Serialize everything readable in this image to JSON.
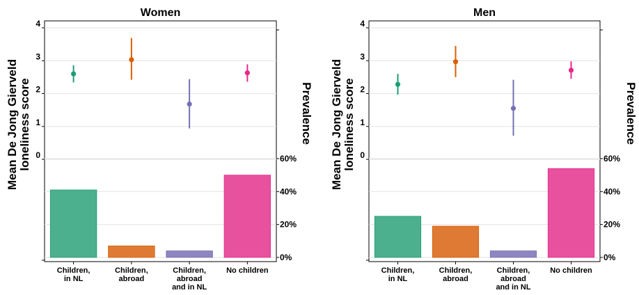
{
  "chart_data": [
    {
      "type": "bar",
      "title": "Women",
      "ylabel": "Mean De Jong Gierveld loneliness score",
      "y2label": "Prevalence",
      "categories": [
        "Children, in NL",
        "Children, abroad",
        "Children, abroad and in NL",
        "No children"
      ],
      "category_lines": [
        [
          "Children,",
          "in NL",
          ""
        ],
        [
          "Children,",
          "abroad",
          ""
        ],
        [
          "Children,",
          "abroad",
          "and in NL"
        ],
        [
          "No children"
        ]
      ],
      "series": [
        {
          "name": "Mean De Jong Gierveld loneliness score",
          "type": "errorbar",
          "values": [
            2.6,
            3.03,
            1.68,
            2.63
          ],
          "lower": [
            2.34,
            2.42,
            0.94,
            2.36
          ],
          "upper": [
            2.86,
            3.69,
            2.44,
            2.89
          ]
        },
        {
          "name": "Prevalence",
          "type": "bar",
          "values": [
            41,
            7,
            4,
            50
          ]
        }
      ],
      "ylim_score": [
        0,
        4
      ],
      "score_ticks": [
        "0",
        "1",
        "2",
        "3",
        "4"
      ],
      "ylim_prevalence": [
        0,
        60
      ],
      "prevalence_ticks": [
        "0%",
        "20%",
        "40%",
        "60%"
      ],
      "colors": [
        "#4caf8e",
        "#de7a33",
        "#8e86c0",
        "#e8519e"
      ],
      "point_colors": [
        "#1b9e77",
        "#d95f02",
        "#7570b3",
        "#e7298a"
      ],
      "grid": true
    },
    {
      "type": "bar",
      "title": "Men",
      "ylabel": "Mean De Jong Gierveld loneliness score",
      "y2label": "Prevalence",
      "categories": [
        "Children, in NL",
        "Children, abroad",
        "Children, abroad and in NL",
        "No children"
      ],
      "category_lines": [
        [
          "Children,",
          "in NL",
          ""
        ],
        [
          "Children,",
          "abroad",
          ""
        ],
        [
          "Children,",
          "abroad",
          "and in NL"
        ],
        [
          "No children"
        ]
      ],
      "series": [
        {
          "name": "Mean De Jong Gierveld loneliness score",
          "type": "errorbar",
          "values": [
            2.28,
            2.97,
            1.55,
            2.71
          ],
          "lower": [
            1.97,
            2.5,
            0.72,
            2.45
          ],
          "upper": [
            2.6,
            3.45,
            2.42,
            2.98
          ]
        },
        {
          "name": "Prevalence",
          "type": "bar",
          "values": [
            25,
            19,
            4,
            54
          ]
        }
      ],
      "ylim_score": [
        0,
        4
      ],
      "score_ticks": [
        "0",
        "1",
        "2",
        "3",
        "4"
      ],
      "ylim_prevalence": [
        0,
        60
      ],
      "prevalence_ticks": [
        "0%",
        "20%",
        "40%",
        "60%"
      ],
      "colors": [
        "#4caf8e",
        "#de7a33",
        "#8e86c0",
        "#e8519e"
      ],
      "point_colors": [
        "#1b9e77",
        "#d95f02",
        "#7570b3",
        "#e7298a"
      ],
      "grid": true
    }
  ]
}
